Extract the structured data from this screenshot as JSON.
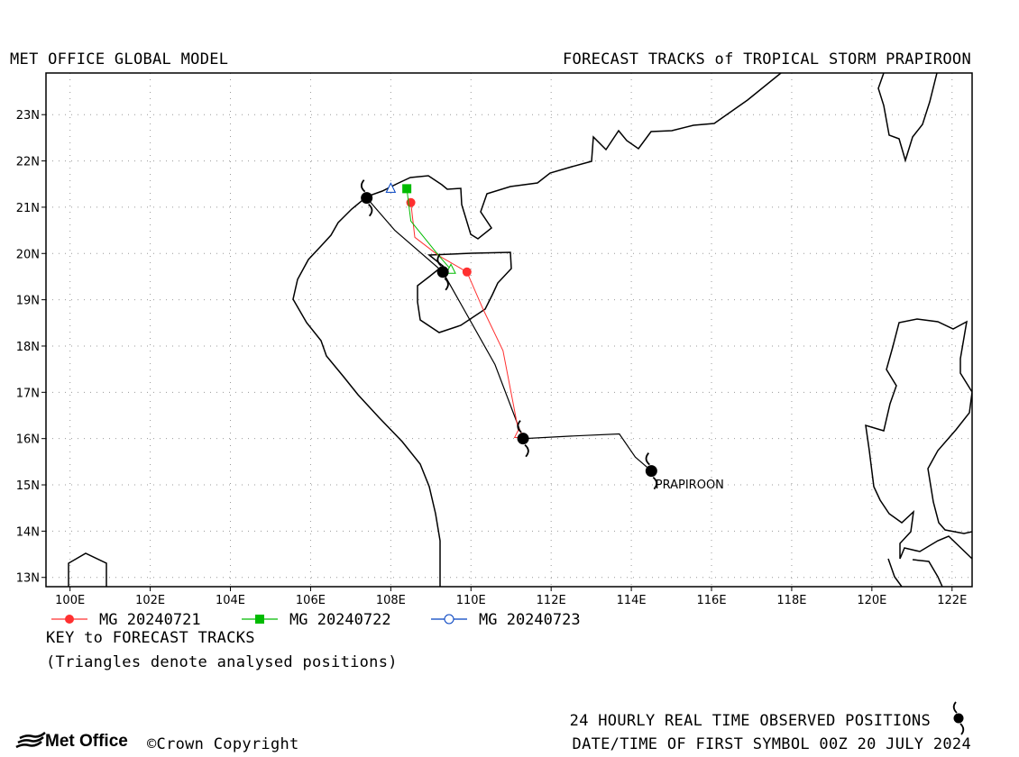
{
  "header": {
    "left_title": "MET OFFICE GLOBAL MODEL",
    "right_title": "FORECAST TRACKS of TROPICAL STORM PRAPIROON"
  },
  "chart_data": {
    "type": "line",
    "title": "FORECAST TRACKS of TROPICAL STORM PRAPIROON",
    "xlabel": "",
    "ylabel": "",
    "xlim": [
      99.4,
      122.5
    ],
    "ylim": [
      12.8,
      23.9
    ],
    "grid": true,
    "x_ticks": [
      "100E",
      "102E",
      "104E",
      "106E",
      "108E",
      "110E",
      "112E",
      "114E",
      "116E",
      "118E",
      "120E",
      "122E"
    ],
    "x_tick_values": [
      100,
      102,
      104,
      106,
      108,
      110,
      112,
      114,
      116,
      118,
      120,
      122
    ],
    "y_ticks": [
      "13N",
      "14N",
      "15N",
      "16N",
      "17N",
      "18N",
      "19N",
      "20N",
      "21N",
      "22N",
      "23N"
    ],
    "y_tick_values": [
      13,
      14,
      15,
      16,
      17,
      18,
      19,
      20,
      21,
      22,
      23
    ],
    "observed_track": {
      "color": "#000000",
      "points": [
        [
          114.5,
          15.3
        ],
        [
          114.1,
          15.6
        ],
        [
          113.7,
          16.1
        ],
        [
          112.4,
          16.05
        ],
        [
          111.3,
          16.0
        ],
        [
          110.6,
          17.6
        ],
        [
          109.3,
          19.6
        ],
        [
          108.1,
          20.5
        ],
        [
          107.4,
          21.2
        ]
      ],
      "symbol_points": [
        [
          114.5,
          15.3
        ],
        [
          111.3,
          16.0
        ],
        [
          109.3,
          19.6
        ],
        [
          107.4,
          21.2
        ]
      ]
    },
    "series": [
      {
        "name": "MG 20240721",
        "color": "#ff3030",
        "marker": "circle",
        "points": [
          [
            111.2,
            16.1
          ],
          [
            110.8,
            17.9
          ],
          [
            110.3,
            18.8
          ],
          [
            109.9,
            19.6
          ],
          [
            109.2,
            19.95
          ],
          [
            108.6,
            20.35
          ],
          [
            108.5,
            21.1
          ]
        ],
        "analysed": [
          [
            111.2,
            16.1
          ]
        ]
      },
      {
        "name": "MG 20240722",
        "color": "#00bb00",
        "marker": "square",
        "points": [
          [
            109.5,
            19.65
          ],
          [
            109.2,
            19.95
          ],
          [
            108.5,
            20.7
          ],
          [
            108.4,
            21.4
          ]
        ],
        "analysed": [
          [
            109.5,
            19.65
          ]
        ]
      },
      {
        "name": "MG 20240723",
        "color": "#0040c0",
        "marker": "circle-open",
        "points": [
          [
            108.0,
            21.4
          ]
        ],
        "analysed": [
          [
            108.0,
            21.4
          ]
        ]
      }
    ],
    "annotations": [
      {
        "text": "PRAPIROON",
        "x": 114.6,
        "y": 15.0
      }
    ]
  },
  "legend": {
    "entries": [
      "MG 20240721",
      "MG 20240722",
      "MG 20240723"
    ],
    "key_title": "KEY to FORECAST TRACKS",
    "key_note": "(Triangles denote analysed positions)"
  },
  "footer": {
    "observed_text": "24 HOURLY REAL TIME OBSERVED POSITIONS",
    "datetime_text": "DATE/TIME OF FIRST SYMBOL 00Z 20 JULY 2024",
    "logo_text": "Met Office",
    "copyright_text": "©Crown Copyright"
  },
  "icons": {
    "storm_symbol": "tropical-storm-icon",
    "logo_mark": "met-office-wave-icon"
  }
}
